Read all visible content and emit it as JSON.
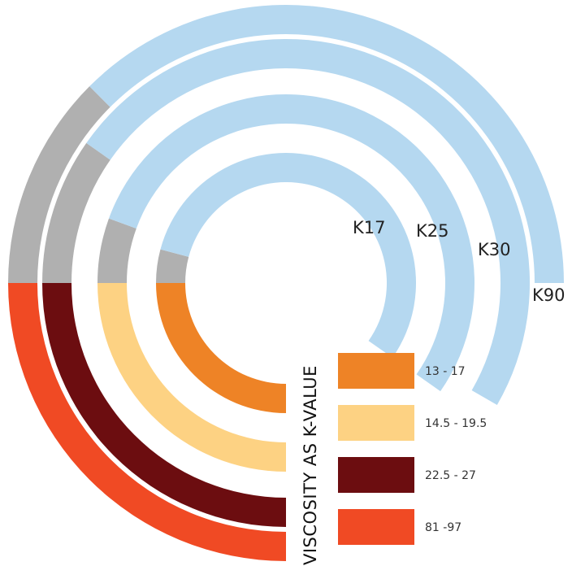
{
  "chart_data": {
    "type": "radial-bar",
    "title": "VISCOSITY AS K-VALUE",
    "colors": {
      "background": "#b5d8f0",
      "gap": "#b0b0b0"
    },
    "rings": [
      {
        "label": "K17",
        "range": [
          13,
          17
        ],
        "color": "#ee8326",
        "arc_angles": {
          "start": 0,
          "end": 305
        },
        "segment_ends": [
          90,
          105
        ]
      },
      {
        "label": "K25",
        "range": [
          14.5,
          19.5
        ],
        "color": "#fdd283",
        "arc_angles": {
          "start": 0,
          "end": 305
        },
        "segment_ends": [
          90,
          110
        ]
      },
      {
        "label": "K30",
        "range": [
          22.5,
          27
        ],
        "color": "#6c0d10",
        "arc_angles": {
          "start": 0,
          "end": 300
        },
        "segment_ends": [
          90,
          125
        ]
      },
      {
        "label": "K90",
        "range": [
          81,
          97
        ],
        "color": "#f04a24",
        "arc_angles": {
          "start": 0,
          "end": 270
        },
        "segment_ends": [
          90,
          135
        ]
      }
    ],
    "legend": [
      {
        "label": "13 - 17",
        "color": "#ee8326"
      },
      {
        "label": "14.5 - 19.5",
        "color": "#fdd283"
      },
      {
        "label": "22.5 - 27",
        "color": "#6c0d10"
      },
      {
        "label": "81 -97",
        "color": "#f04a24"
      }
    ]
  }
}
